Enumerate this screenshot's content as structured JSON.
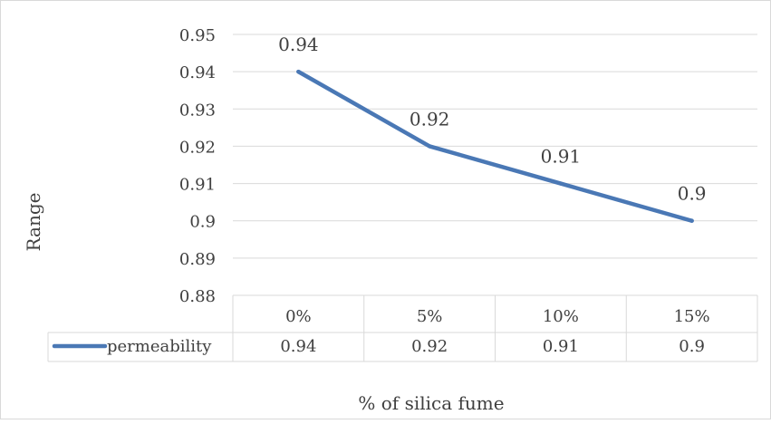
{
  "chart_data": {
    "type": "line",
    "title": "",
    "xlabel": "% of silica fume",
    "ylabel": "Range",
    "categories": [
      "0%",
      "5%",
      "10%",
      "15%"
    ],
    "series": [
      {
        "name": "permeability",
        "values": [
          0.94,
          0.92,
          0.91,
          0.9
        ],
        "color": "#4a78b5"
      }
    ],
    "data_labels": [
      "0.94",
      "0.92",
      "0.91",
      "0.9"
    ],
    "table_values": [
      "0.94",
      "0.92",
      "0.91",
      "0.9"
    ],
    "y_ticks": [
      "0.95",
      "0.94",
      "0.93",
      "0.92",
      "0.91",
      "0.9",
      "0.89",
      "0.88"
    ],
    "ylim": [
      0.88,
      0.95
    ],
    "grid": true,
    "legend": "data table"
  }
}
